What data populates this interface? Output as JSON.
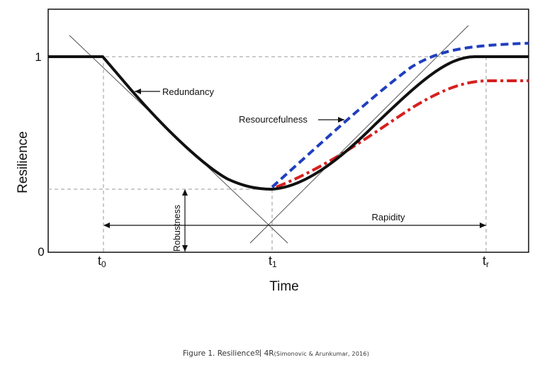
{
  "figure": {
    "y_axis_label": "Resilience",
    "x_axis_label": "Time",
    "y_ticks": {
      "top": "1",
      "bottom": "0"
    },
    "x_ticks": {
      "t0": {
        "base": "t",
        "sub": "0"
      },
      "t1": {
        "base": "t",
        "sub": "1"
      },
      "tr": {
        "base": "t",
        "sub": "r"
      }
    },
    "annotations": {
      "redundancy": "Redundancy",
      "resourcefulness": "Resourcefulness",
      "robustness": "Robustness",
      "rapidity": "Rapidity"
    },
    "colors": {
      "main_curve": "#111111",
      "upper_curve": "#1f3fbf",
      "lower_curve": "#d71f1f",
      "guides": "#999999",
      "tangents": "#444444"
    }
  },
  "caption": {
    "main": "Figure 1. Resilience의 4R",
    "source": "(Simonovic & Arunkumar, 2016)"
  }
}
